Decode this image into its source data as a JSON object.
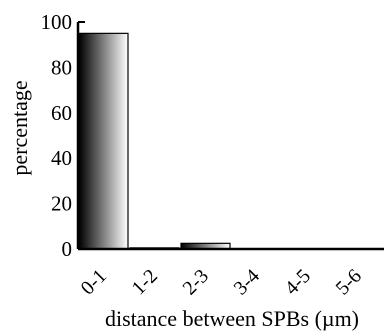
{
  "chart_data": {
    "type": "bar",
    "categories": [
      "0-1",
      "1-2",
      "2-3",
      "3-4",
      "4-5",
      "5-6"
    ],
    "values": [
      95,
      0.5,
      2.5,
      0,
      0,
      0
    ],
    "xlabel": "distance between SPBs (µm)",
    "ylabel": "percentage",
    "ylim": [
      0,
      100
    ],
    "yticks": [
      0,
      20,
      40,
      60,
      80,
      100
    ],
    "grid": false,
    "legend": "none",
    "bar_fill": "gradient black-to-white",
    "colors": {
      "gradient_start": "#000000",
      "gradient_end": "#ffffff",
      "axis": "#000000"
    }
  }
}
